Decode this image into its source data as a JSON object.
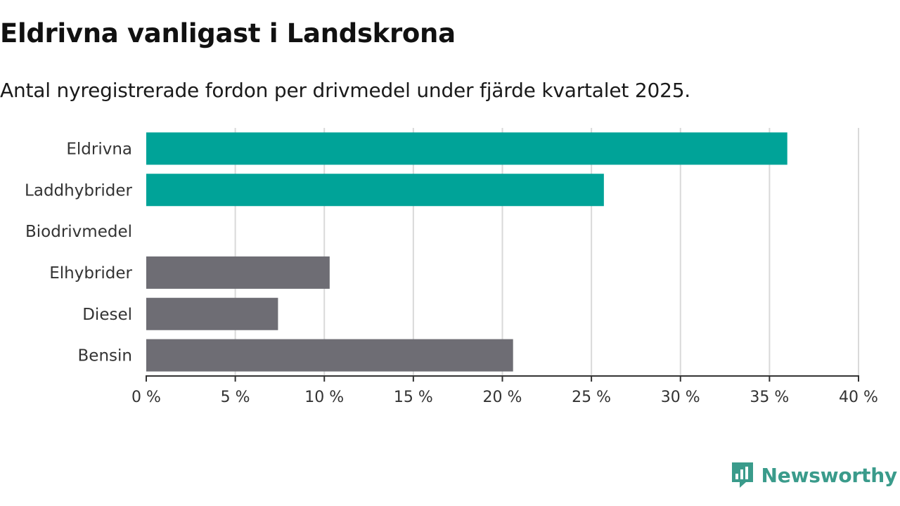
{
  "title": "Eldrivna vanligast i Landskrona",
  "subtitle": "Antal nyregistrerade fordon per drivmedel under fjärde kvartalet 2025.",
  "brand": {
    "name": "Newsworthy",
    "icon": "bar-chart-logo-icon"
  },
  "colors": {
    "highlight": "#00a398",
    "default": "#6e6d74",
    "grid": "#d9d9d9",
    "axis": "#333333",
    "brand": "#3a9b8b"
  },
  "chart_data": {
    "type": "bar",
    "orientation": "horizontal",
    "categories": [
      "Eldrivna",
      "Laddhybrider",
      "Biodrivmedel",
      "Elhybrider",
      "Diesel",
      "Bensin"
    ],
    "values": [
      36.0,
      25.7,
      0,
      10.3,
      7.4,
      20.6
    ],
    "highlight": [
      true,
      true,
      true,
      false,
      false,
      false
    ],
    "unit": "%",
    "xlim": [
      0,
      40
    ],
    "ticks": [
      0,
      5,
      10,
      15,
      20,
      25,
      30,
      35,
      40
    ],
    "tick_labels": [
      "0 %",
      "5 %",
      "10 %",
      "15 %",
      "20 %",
      "25 %",
      "30 %",
      "35 %",
      "40 %"
    ],
    "grid": true,
    "title": "Eldrivna vanligast i Landskrona",
    "xlabel": "",
    "ylabel": ""
  }
}
